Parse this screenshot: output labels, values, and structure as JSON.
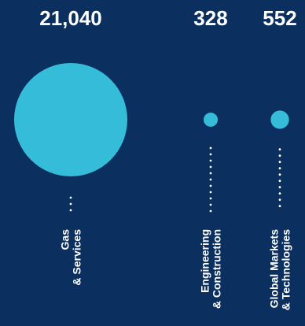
{
  "chart_data": {
    "type": "bubble",
    "categories": [
      {
        "lines": [
          "Gas",
          "& Services"
        ]
      },
      {
        "lines": [
          "Engineering",
          "& Construction"
        ]
      },
      {
        "lines": [
          "Global Markets",
          "& Technologies"
        ]
      }
    ],
    "values": [
      21040,
      328,
      552
    ],
    "value_labels": [
      "21,040",
      "328",
      "552"
    ]
  },
  "colors": {
    "background": "#0b2f5e",
    "bubble": "#35bcd9",
    "dots": "#ffffff",
    "text": "#ffffff"
  }
}
